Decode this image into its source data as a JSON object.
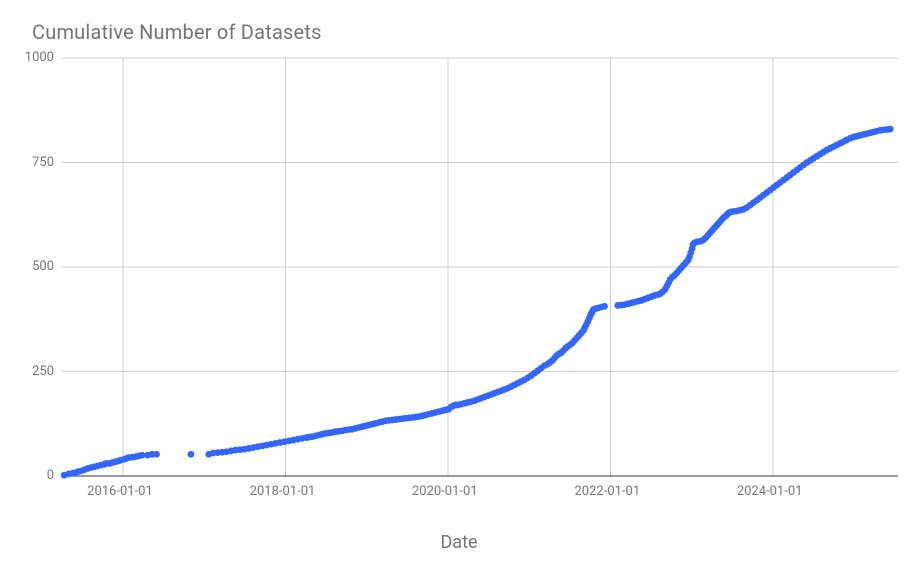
{
  "chart": {
    "type": "scatter",
    "title": "Cumulative Number of Datasets",
    "title_fontsize": 20,
    "title_color": "#757575",
    "xaxis_title": "Date",
    "xaxis_title_fontsize": 18,
    "xaxis_title_color": "#757575",
    "background_color": "#ffffff",
    "grid_color": "#cccccc",
    "grid_width": 1,
    "axis_line_color": "#333333",
    "axis_line_width": 1,
    "marker_color": "#3366ff",
    "marker_radius": 3.4,
    "tick_label_color": "#757575",
    "tick_label_fontsize": 13,
    "y": {
      "min": 0,
      "max": 1000,
      "ticks": [
        0,
        250,
        500,
        750,
        1000
      ]
    },
    "x": {
      "min": 0,
      "max": 3760,
      "ticks": [
        {
          "d": 275,
          "label": "2016-01-01"
        },
        {
          "d": 1006,
          "label": "2018-01-01"
        },
        {
          "d": 1736,
          "label": "2020-01-01"
        },
        {
          "d": 2467,
          "label": "2022-01-01"
        },
        {
          "d": 3197,
          "label": "2024-01-01"
        }
      ]
    },
    "points": [
      {
        "d": 10,
        "v": 2
      },
      {
        "d": 30,
        "v": 5
      },
      {
        "d": 50,
        "v": 7
      },
      {
        "d": 70,
        "v": 10
      },
      {
        "d": 85,
        "v": 12
      },
      {
        "d": 100,
        "v": 15
      },
      {
        "d": 115,
        "v": 18
      },
      {
        "d": 130,
        "v": 20
      },
      {
        "d": 145,
        "v": 22
      },
      {
        "d": 160,
        "v": 24
      },
      {
        "d": 175,
        "v": 26
      },
      {
        "d": 190,
        "v": 28
      },
      {
        "d": 200,
        "v": 30
      },
      {
        "d": 215,
        "v": 30
      },
      {
        "d": 225,
        "v": 32
      },
      {
        "d": 240,
        "v": 34
      },
      {
        "d": 255,
        "v": 36
      },
      {
        "d": 265,
        "v": 38
      },
      {
        "d": 280,
        "v": 40
      },
      {
        "d": 290,
        "v": 42
      },
      {
        "d": 300,
        "v": 44
      },
      {
        "d": 315,
        "v": 45
      },
      {
        "d": 330,
        "v": 46
      },
      {
        "d": 345,
        "v": 48
      },
      {
        "d": 360,
        "v": 50
      },
      {
        "d": 385,
        "v": 50
      },
      {
        "d": 405,
        "v": 52
      },
      {
        "d": 425,
        "v": 52
      },
      {
        "d": 580,
        "v": 52
      },
      {
        "d": 660,
        "v": 52
      },
      {
        "d": 680,
        "v": 55
      },
      {
        "d": 700,
        "v": 56
      },
      {
        "d": 720,
        "v": 57
      },
      {
        "d": 740,
        "v": 58
      },
      {
        "d": 760,
        "v": 60
      },
      {
        "d": 780,
        "v": 62
      },
      {
        "d": 800,
        "v": 63
      },
      {
        "d": 820,
        "v": 64
      },
      {
        "d": 840,
        "v": 66
      },
      {
        "d": 860,
        "v": 68
      },
      {
        "d": 880,
        "v": 70
      },
      {
        "d": 900,
        "v": 72
      },
      {
        "d": 920,
        "v": 74
      },
      {
        "d": 940,
        "v": 76
      },
      {
        "d": 960,
        "v": 78
      },
      {
        "d": 980,
        "v": 80
      },
      {
        "d": 1000,
        "v": 82
      },
      {
        "d": 1020,
        "v": 84
      },
      {
        "d": 1040,
        "v": 86
      },
      {
        "d": 1060,
        "v": 88
      },
      {
        "d": 1080,
        "v": 90
      },
      {
        "d": 1100,
        "v": 92
      },
      {
        "d": 1110,
        "v": 93
      },
      {
        "d": 1125,
        "v": 94
      },
      {
        "d": 1140,
        "v": 96
      },
      {
        "d": 1155,
        "v": 98
      },
      {
        "d": 1170,
        "v": 100
      },
      {
        "d": 1185,
        "v": 102
      },
      {
        "d": 1200,
        "v": 103
      },
      {
        "d": 1215,
        "v": 104
      },
      {
        "d": 1230,
        "v": 106
      },
      {
        "d": 1245,
        "v": 107
      },
      {
        "d": 1260,
        "v": 108
      },
      {
        "d": 1275,
        "v": 110
      },
      {
        "d": 1290,
        "v": 111
      },
      {
        "d": 1305,
        "v": 112
      },
      {
        "d": 1320,
        "v": 114
      },
      {
        "d": 1335,
        "v": 116
      },
      {
        "d": 1350,
        "v": 118
      },
      {
        "d": 1365,
        "v": 120
      },
      {
        "d": 1380,
        "v": 122
      },
      {
        "d": 1395,
        "v": 124
      },
      {
        "d": 1410,
        "v": 126
      },
      {
        "d": 1425,
        "v": 128
      },
      {
        "d": 1440,
        "v": 130
      },
      {
        "d": 1455,
        "v": 132
      },
      {
        "d": 1470,
        "v": 133
      },
      {
        "d": 1485,
        "v": 134
      },
      {
        "d": 1500,
        "v": 135
      },
      {
        "d": 1515,
        "v": 136
      },
      {
        "d": 1530,
        "v": 137
      },
      {
        "d": 1545,
        "v": 138
      },
      {
        "d": 1560,
        "v": 139
      },
      {
        "d": 1575,
        "v": 140
      },
      {
        "d": 1590,
        "v": 141
      },
      {
        "d": 1605,
        "v": 142
      },
      {
        "d": 1620,
        "v": 144
      },
      {
        "d": 1635,
        "v": 146
      },
      {
        "d": 1650,
        "v": 148
      },
      {
        "d": 1665,
        "v": 150
      },
      {
        "d": 1680,
        "v": 152
      },
      {
        "d": 1695,
        "v": 154
      },
      {
        "d": 1710,
        "v": 156
      },
      {
        "d": 1725,
        "v": 158
      },
      {
        "d": 1740,
        "v": 160
      },
      {
        "d": 1750,
        "v": 165
      },
      {
        "d": 1760,
        "v": 168
      },
      {
        "d": 1770,
        "v": 170
      },
      {
        "d": 1780,
        "v": 170
      },
      {
        "d": 1795,
        "v": 172
      },
      {
        "d": 1810,
        "v": 174
      },
      {
        "d": 1825,
        "v": 176
      },
      {
        "d": 1840,
        "v": 178
      },
      {
        "d": 1855,
        "v": 180
      },
      {
        "d": 1870,
        "v": 183
      },
      {
        "d": 1885,
        "v": 186
      },
      {
        "d": 1900,
        "v": 189
      },
      {
        "d": 1915,
        "v": 192
      },
      {
        "d": 1930,
        "v": 195
      },
      {
        "d": 1945,
        "v": 198
      },
      {
        "d": 1960,
        "v": 201
      },
      {
        "d": 1975,
        "v": 204
      },
      {
        "d": 1990,
        "v": 207
      },
      {
        "d": 2005,
        "v": 210
      },
      {
        "d": 2020,
        "v": 214
      },
      {
        "d": 2035,
        "v": 218
      },
      {
        "d": 2050,
        "v": 222
      },
      {
        "d": 2065,
        "v": 226
      },
      {
        "d": 2080,
        "v": 230
      },
      {
        "d": 2095,
        "v": 235
      },
      {
        "d": 2110,
        "v": 240
      },
      {
        "d": 2125,
        "v": 246
      },
      {
        "d": 2140,
        "v": 252
      },
      {
        "d": 2155,
        "v": 258
      },
      {
        "d": 2170,
        "v": 264
      },
      {
        "d": 2185,
        "v": 268
      },
      {
        "d": 2195,
        "v": 272
      },
      {
        "d": 2205,
        "v": 276
      },
      {
        "d": 2215,
        "v": 282
      },
      {
        "d": 2225,
        "v": 288
      },
      {
        "d": 2235,
        "v": 292
      },
      {
        "d": 2245,
        "v": 295
      },
      {
        "d": 2255,
        "v": 300
      },
      {
        "d": 2265,
        "v": 306
      },
      {
        "d": 2275,
        "v": 310
      },
      {
        "d": 2285,
        "v": 314
      },
      {
        "d": 2295,
        "v": 318
      },
      {
        "d": 2305,
        "v": 324
      },
      {
        "d": 2315,
        "v": 330
      },
      {
        "d": 2325,
        "v": 336
      },
      {
        "d": 2335,
        "v": 342
      },
      {
        "d": 2345,
        "v": 348
      },
      {
        "d": 2350,
        "v": 354
      },
      {
        "d": 2358,
        "v": 362
      },
      {
        "d": 2365,
        "v": 370
      },
      {
        "d": 2372,
        "v": 378
      },
      {
        "d": 2378,
        "v": 386
      },
      {
        "d": 2384,
        "v": 392
      },
      {
        "d": 2390,
        "v": 398
      },
      {
        "d": 2398,
        "v": 400
      },
      {
        "d": 2410,
        "v": 402
      },
      {
        "d": 2425,
        "v": 404
      },
      {
        "d": 2440,
        "v": 406
      },
      {
        "d": 2500,
        "v": 408
      },
      {
        "d": 2515,
        "v": 409
      },
      {
        "d": 2530,
        "v": 410
      },
      {
        "d": 2545,
        "v": 412
      },
      {
        "d": 2560,
        "v": 414
      },
      {
        "d": 2575,
        "v": 416
      },
      {
        "d": 2590,
        "v": 418
      },
      {
        "d": 2605,
        "v": 420
      },
      {
        "d": 2620,
        "v": 423
      },
      {
        "d": 2635,
        "v": 426
      },
      {
        "d": 2650,
        "v": 429
      },
      {
        "d": 2665,
        "v": 432
      },
      {
        "d": 2680,
        "v": 434
      },
      {
        "d": 2690,
        "v": 436
      },
      {
        "d": 2700,
        "v": 440
      },
      {
        "d": 2712,
        "v": 446
      },
      {
        "d": 2720,
        "v": 454
      },
      {
        "d": 2728,
        "v": 462
      },
      {
        "d": 2735,
        "v": 470
      },
      {
        "d": 2745,
        "v": 476
      },
      {
        "d": 2755,
        "v": 480
      },
      {
        "d": 2765,
        "v": 486
      },
      {
        "d": 2775,
        "v": 492
      },
      {
        "d": 2785,
        "v": 498
      },
      {
        "d": 2795,
        "v": 504
      },
      {
        "d": 2805,
        "v": 510
      },
      {
        "d": 2815,
        "v": 516
      },
      {
        "d": 2822,
        "v": 524
      },
      {
        "d": 2828,
        "v": 534
      },
      {
        "d": 2834,
        "v": 544
      },
      {
        "d": 2838,
        "v": 554
      },
      {
        "d": 2845,
        "v": 558
      },
      {
        "d": 2855,
        "v": 560
      },
      {
        "d": 2865,
        "v": 561
      },
      {
        "d": 2875,
        "v": 562
      },
      {
        "d": 2885,
        "v": 565
      },
      {
        "d": 2895,
        "v": 570
      },
      {
        "d": 2905,
        "v": 576
      },
      {
        "d": 2915,
        "v": 582
      },
      {
        "d": 2925,
        "v": 588
      },
      {
        "d": 2935,
        "v": 594
      },
      {
        "d": 2945,
        "v": 600
      },
      {
        "d": 2955,
        "v": 606
      },
      {
        "d": 2965,
        "v": 612
      },
      {
        "d": 2975,
        "v": 618
      },
      {
        "d": 2985,
        "v": 622
      },
      {
        "d": 2992,
        "v": 626
      },
      {
        "d": 3000,
        "v": 630
      },
      {
        "d": 3010,
        "v": 632
      },
      {
        "d": 3022,
        "v": 633
      },
      {
        "d": 3035,
        "v": 634
      },
      {
        "d": 3050,
        "v": 636
      },
      {
        "d": 3065,
        "v": 638
      },
      {
        "d": 3080,
        "v": 642
      },
      {
        "d": 3095,
        "v": 648
      },
      {
        "d": 3110,
        "v": 654
      },
      {
        "d": 3125,
        "v": 660
      },
      {
        "d": 3140,
        "v": 666
      },
      {
        "d": 3155,
        "v": 672
      },
      {
        "d": 3170,
        "v": 678
      },
      {
        "d": 3185,
        "v": 684
      },
      {
        "d": 3200,
        "v": 690
      },
      {
        "d": 3215,
        "v": 696
      },
      {
        "d": 3230,
        "v": 702
      },
      {
        "d": 3245,
        "v": 708
      },
      {
        "d": 3260,
        "v": 714
      },
      {
        "d": 3275,
        "v": 720
      },
      {
        "d": 3290,
        "v": 726
      },
      {
        "d": 3305,
        "v": 732
      },
      {
        "d": 3320,
        "v": 738
      },
      {
        "d": 3335,
        "v": 744
      },
      {
        "d": 3350,
        "v": 750
      },
      {
        "d": 3365,
        "v": 755
      },
      {
        "d": 3380,
        "v": 760
      },
      {
        "d": 3395,
        "v": 765
      },
      {
        "d": 3410,
        "v": 770
      },
      {
        "d": 3425,
        "v": 775
      },
      {
        "d": 3440,
        "v": 780
      },
      {
        "d": 3455,
        "v": 784
      },
      {
        "d": 3470,
        "v": 788
      },
      {
        "d": 3485,
        "v": 792
      },
      {
        "d": 3500,
        "v": 796
      },
      {
        "d": 3515,
        "v": 800
      },
      {
        "d": 3530,
        "v": 804
      },
      {
        "d": 3545,
        "v": 808
      },
      {
        "d": 3560,
        "v": 811
      },
      {
        "d": 3575,
        "v": 813
      },
      {
        "d": 3590,
        "v": 815
      },
      {
        "d": 3605,
        "v": 817
      },
      {
        "d": 3620,
        "v": 819
      },
      {
        "d": 3635,
        "v": 821
      },
      {
        "d": 3650,
        "v": 823
      },
      {
        "d": 3665,
        "v": 825
      },
      {
        "d": 3680,
        "v": 827
      },
      {
        "d": 3695,
        "v": 828
      },
      {
        "d": 3710,
        "v": 829
      },
      {
        "d": 3725,
        "v": 830
      }
    ]
  }
}
